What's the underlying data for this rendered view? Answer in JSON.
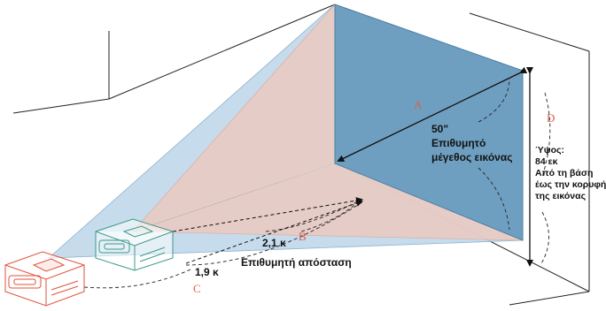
{
  "labels": {
    "a": "A",
    "b": "B",
    "c": "C",
    "d": "D"
  },
  "screen": {
    "size": "50\"",
    "line1": "Επιθυμητό",
    "line2": "μέγεθος εικόνας"
  },
  "distance": {
    "far": "2,1 κ",
    "near": "1,9 κ",
    "label": "Επιθυμητή απόσταση"
  },
  "height": {
    "line1": "Ύψος:",
    "line2": "84 εκ",
    "line3": "Από τη βάση",
    "line4": "έως την κορυφή",
    "line5": "της εικόνας"
  },
  "colors": {
    "screen": "#6f9fc0",
    "beam_blue": "#b9d3e6",
    "beam_pink": "#e8c9c2",
    "projector_far": "#3c9a8c",
    "projector_near": "#e0523a",
    "letters": "#d9604a"
  }
}
